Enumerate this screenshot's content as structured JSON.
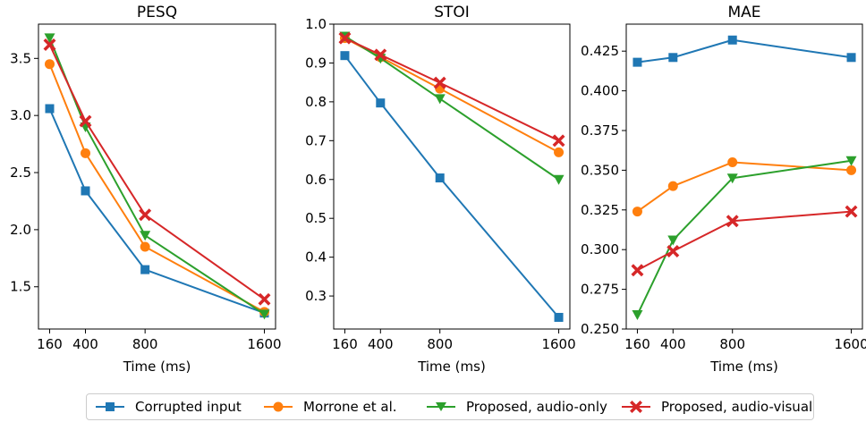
{
  "chart_data": [
    {
      "type": "line",
      "title": "PESQ",
      "xlabel": "Time (ms)",
      "ylabel": "",
      "x": [
        160,
        400,
        800,
        1600
      ],
      "xticks": [
        160,
        400,
        800,
        1600
      ],
      "xlim": [
        85,
        1675
      ],
      "ylim": [
        1.13,
        3.8
      ],
      "yticks": [
        "1.5",
        "2.0",
        "2.5",
        "3.0",
        "3.5"
      ],
      "series": [
        {
          "name": "Corrupted input",
          "values": [
            3.06,
            2.34,
            1.65,
            1.27
          ]
        },
        {
          "name": "Morrone et al.",
          "values": [
            3.45,
            2.67,
            1.85,
            1.28
          ]
        },
        {
          "name": "Proposed, audio-only",
          "values": [
            3.68,
            2.9,
            1.95,
            1.26
          ]
        },
        {
          "name": "Proposed, audio-visual",
          "values": [
            3.62,
            2.95,
            2.13,
            1.39
          ]
        }
      ]
    },
    {
      "type": "line",
      "title": "STOI",
      "xlabel": "Time (ms)",
      "ylabel": "",
      "x": [
        160,
        400,
        800,
        1600
      ],
      "xticks": [
        160,
        400,
        800,
        1600
      ],
      "xlim": [
        85,
        1675
      ],
      "ylim": [
        0.215,
        1.0
      ],
      "yticks": [
        "0.3",
        "0.4",
        "0.5",
        "0.6",
        "0.7",
        "0.8",
        "0.9",
        "1.0"
      ],
      "series": [
        {
          "name": "Corrupted input",
          "values": [
            0.919,
            0.797,
            0.604,
            0.245
          ]
        },
        {
          "name": "Morrone et al.",
          "values": [
            0.964,
            0.915,
            0.834,
            0.67
          ]
        },
        {
          "name": "Proposed, audio-only",
          "values": [
            0.969,
            0.912,
            0.808,
            0.6
          ]
        },
        {
          "name": "Proposed, audio-visual",
          "values": [
            0.964,
            0.921,
            0.849,
            0.7
          ]
        }
      ]
    },
    {
      "type": "line",
      "title": "MAE",
      "xlabel": "Time (ms)",
      "ylabel": "",
      "x": [
        160,
        400,
        800,
        1600
      ],
      "xticks": [
        160,
        400,
        800,
        1600
      ],
      "xlim": [
        85,
        1675
      ],
      "ylim": [
        0.25,
        0.442
      ],
      "yticks": [
        "0.250",
        "0.275",
        "0.300",
        "0.325",
        "0.350",
        "0.375",
        "0.400",
        "0.425"
      ],
      "series": [
        {
          "name": "Corrupted input",
          "values": [
            0.418,
            0.421,
            0.432,
            0.421
          ]
        },
        {
          "name": "Morrone et al.",
          "values": [
            0.324,
            0.34,
            0.355,
            0.35
          ]
        },
        {
          "name": "Proposed, audio-only",
          "values": [
            0.259,
            0.306,
            0.345,
            0.356
          ]
        },
        {
          "name": "Proposed, audio-visual",
          "values": [
            0.287,
            0.299,
            0.318,
            0.324
          ]
        }
      ]
    }
  ],
  "legend": {
    "items": [
      {
        "label": "Corrupted input",
        "color": "#1f77b4",
        "marker": "square"
      },
      {
        "label": "Morrone et al.",
        "color": "#ff7f0e",
        "marker": "circle"
      },
      {
        "label": "Proposed, audio-only",
        "color": "#2ca02c",
        "marker": "triangle-down"
      },
      {
        "label": "Proposed, audio-visual",
        "color": "#d62728",
        "marker": "x"
      }
    ]
  },
  "colors": [
    "#1f77b4",
    "#ff7f0e",
    "#2ca02c",
    "#d62728"
  ],
  "markers": [
    "square",
    "circle",
    "triangle-down",
    "x"
  ]
}
